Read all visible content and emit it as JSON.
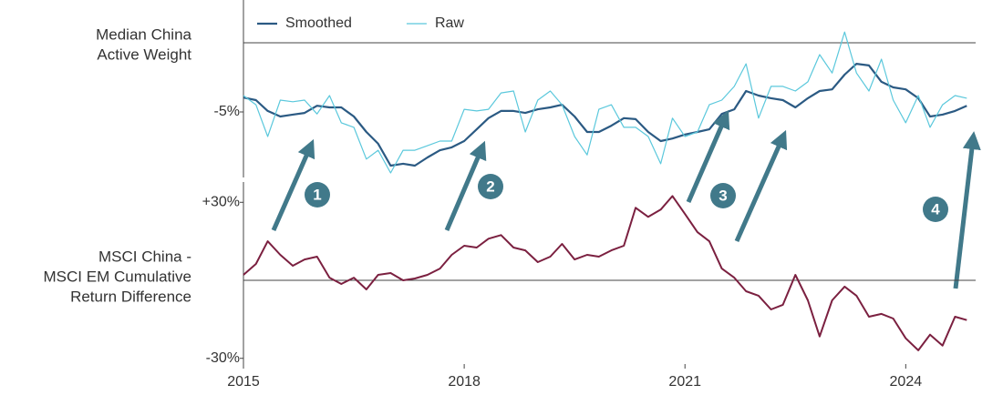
{
  "chart_data": [
    {
      "type": "line",
      "ylabel": [
        "Median China",
        "Active Weight"
      ],
      "x": [
        2015,
        2015.17,
        2015.33,
        2015.5,
        2015.67,
        2015.83,
        2016,
        2016.17,
        2016.33,
        2016.5,
        2016.67,
        2016.83,
        2017,
        2017.17,
        2017.33,
        2017.5,
        2017.67,
        2017.83,
        2018,
        2018.17,
        2018.33,
        2018.5,
        2018.67,
        2018.83,
        2019,
        2019.17,
        2019.33,
        2019.5,
        2019.67,
        2019.83,
        2020,
        2020.17,
        2020.33,
        2020.5,
        2020.67,
        2020.83,
        2021,
        2021.17,
        2021.33,
        2021.5,
        2021.67,
        2021.83,
        2022,
        2022.17,
        2022.33,
        2022.5,
        2022.67,
        2022.83,
        2023,
        2023.17,
        2023.33,
        2023.5,
        2023.67,
        2023.83,
        2024,
        2024.17,
        2024.33,
        2024.5,
        2024.67,
        2024.83
      ],
      "xlim": [
        2015,
        2024.95
      ],
      "ylim": [
        -7,
        -2
      ],
      "yticks": [
        {
          "value": -5,
          "label": "-5%"
        }
      ],
      "legend": "top-left",
      "series": [
        {
          "name": "Smoothed",
          "color": "#2b5a83",
          "width": 2.2,
          "values": [
            -4.56,
            -4.64,
            -4.97,
            -5.14,
            -5.08,
            -5.03,
            -4.81,
            -4.86,
            -4.86,
            -5.14,
            -5.61,
            -5.97,
            -6.64,
            -6.58,
            -6.64,
            -6.39,
            -6.17,
            -6.08,
            -5.89,
            -5.53,
            -5.19,
            -4.97,
            -4.97,
            -5.03,
            -4.92,
            -4.86,
            -4.78,
            -5.14,
            -5.61,
            -5.61,
            -5.42,
            -5.19,
            -5.22,
            -5.61,
            -5.89,
            -5.81,
            -5.69,
            -5.61,
            -5.53,
            -5.06,
            -4.92,
            -4.36,
            -4.5,
            -4.58,
            -4.64,
            -4.86,
            -4.58,
            -4.36,
            -4.31,
            -3.86,
            -3.53,
            -3.58,
            -4.08,
            -4.25,
            -4.31,
            -4.58,
            -5.14,
            -5.08,
            -4.97,
            -4.81
          ]
        },
        {
          "name": "Raw",
          "color": "#5bc8dc",
          "width": 1.2,
          "values": [
            -4.5,
            -4.78,
            -5.75,
            -4.64,
            -4.69,
            -4.64,
            -5.06,
            -4.5,
            -5.33,
            -5.47,
            -6.44,
            -6.17,
            -6.86,
            -6.17,
            -6.17,
            -6.03,
            -5.89,
            -5.89,
            -4.92,
            -4.97,
            -4.92,
            -4.42,
            -4.36,
            -5.61,
            -4.64,
            -4.36,
            -4.78,
            -5.75,
            -6.31,
            -4.92,
            -4.78,
            -5.47,
            -5.47,
            -5.75,
            -6.58,
            -5.19,
            -5.75,
            -5.61,
            -4.78,
            -4.64,
            -4.22,
            -3.53,
            -5.19,
            -4.22,
            -4.22,
            -4.36,
            -4.08,
            -3.25,
            -3.81,
            -2.56,
            -3.81,
            -4.36,
            -3.39,
            -4.64,
            -5.33,
            -4.5,
            -5.47,
            -4.78,
            -4.5,
            -4.58
          ]
        }
      ],
      "annotations": [
        "1",
        "2",
        "3",
        "4"
      ]
    },
    {
      "type": "line",
      "ylabel": [
        "MSCI China -",
        "MSCI EM Cumulative",
        "Return Difference"
      ],
      "x": [
        2015,
        2015.17,
        2015.33,
        2015.5,
        2015.67,
        2015.83,
        2016,
        2016.17,
        2016.33,
        2016.5,
        2016.67,
        2016.83,
        2017,
        2017.17,
        2017.33,
        2017.5,
        2017.67,
        2017.83,
        2018,
        2018.17,
        2018.33,
        2018.5,
        2018.67,
        2018.83,
        2019,
        2019.17,
        2019.33,
        2019.5,
        2019.67,
        2019.83,
        2020,
        2020.17,
        2020.33,
        2020.5,
        2020.67,
        2020.83,
        2021,
        2021.17,
        2021.33,
        2021.5,
        2021.67,
        2021.83,
        2022,
        2022.17,
        2022.33,
        2022.5,
        2022.67,
        2022.83,
        2023,
        2023.17,
        2023.33,
        2023.5,
        2023.67,
        2023.83,
        2024,
        2024.17,
        2024.33,
        2024.5,
        2024.67,
        2024.83
      ],
      "xlim": [
        2015,
        2024.95
      ],
      "xticks": [
        2015,
        2018,
        2021,
        2024
      ],
      "ylim": [
        -35,
        35
      ],
      "yticks": [
        {
          "value": -30,
          "label": "-30%"
        },
        {
          "value": 30,
          "label": "+30%"
        }
      ],
      "series": [
        {
          "color": "#7b2040",
          "width": 2,
          "values": [
            2.1,
            6.3,
            15,
            9.8,
            5.6,
            8,
            9.1,
            1,
            -1.4,
            1,
            -3.5,
            2.1,
            2.8,
            0,
            0.7,
            2.1,
            4.5,
            9.8,
            13.3,
            12.6,
            16,
            17.4,
            12.6,
            11.5,
            7,
            9.1,
            14,
            8,
            9.8,
            9.1,
            11.5,
            13.3,
            27.9,
            24.4,
            27.2,
            32.4,
            25.5,
            18.5,
            15,
            4.5,
            1,
            -4.2,
            -5.9,
            -11.2,
            -9.4,
            2.1,
            -7.7,
            -21.6,
            -7.7,
            -2.4,
            -5.9,
            -14,
            -12.9,
            -14.7,
            -22.3,
            -26.9,
            -20.9,
            -25.1,
            -14,
            -15.3
          ]
        }
      ]
    }
  ]
}
